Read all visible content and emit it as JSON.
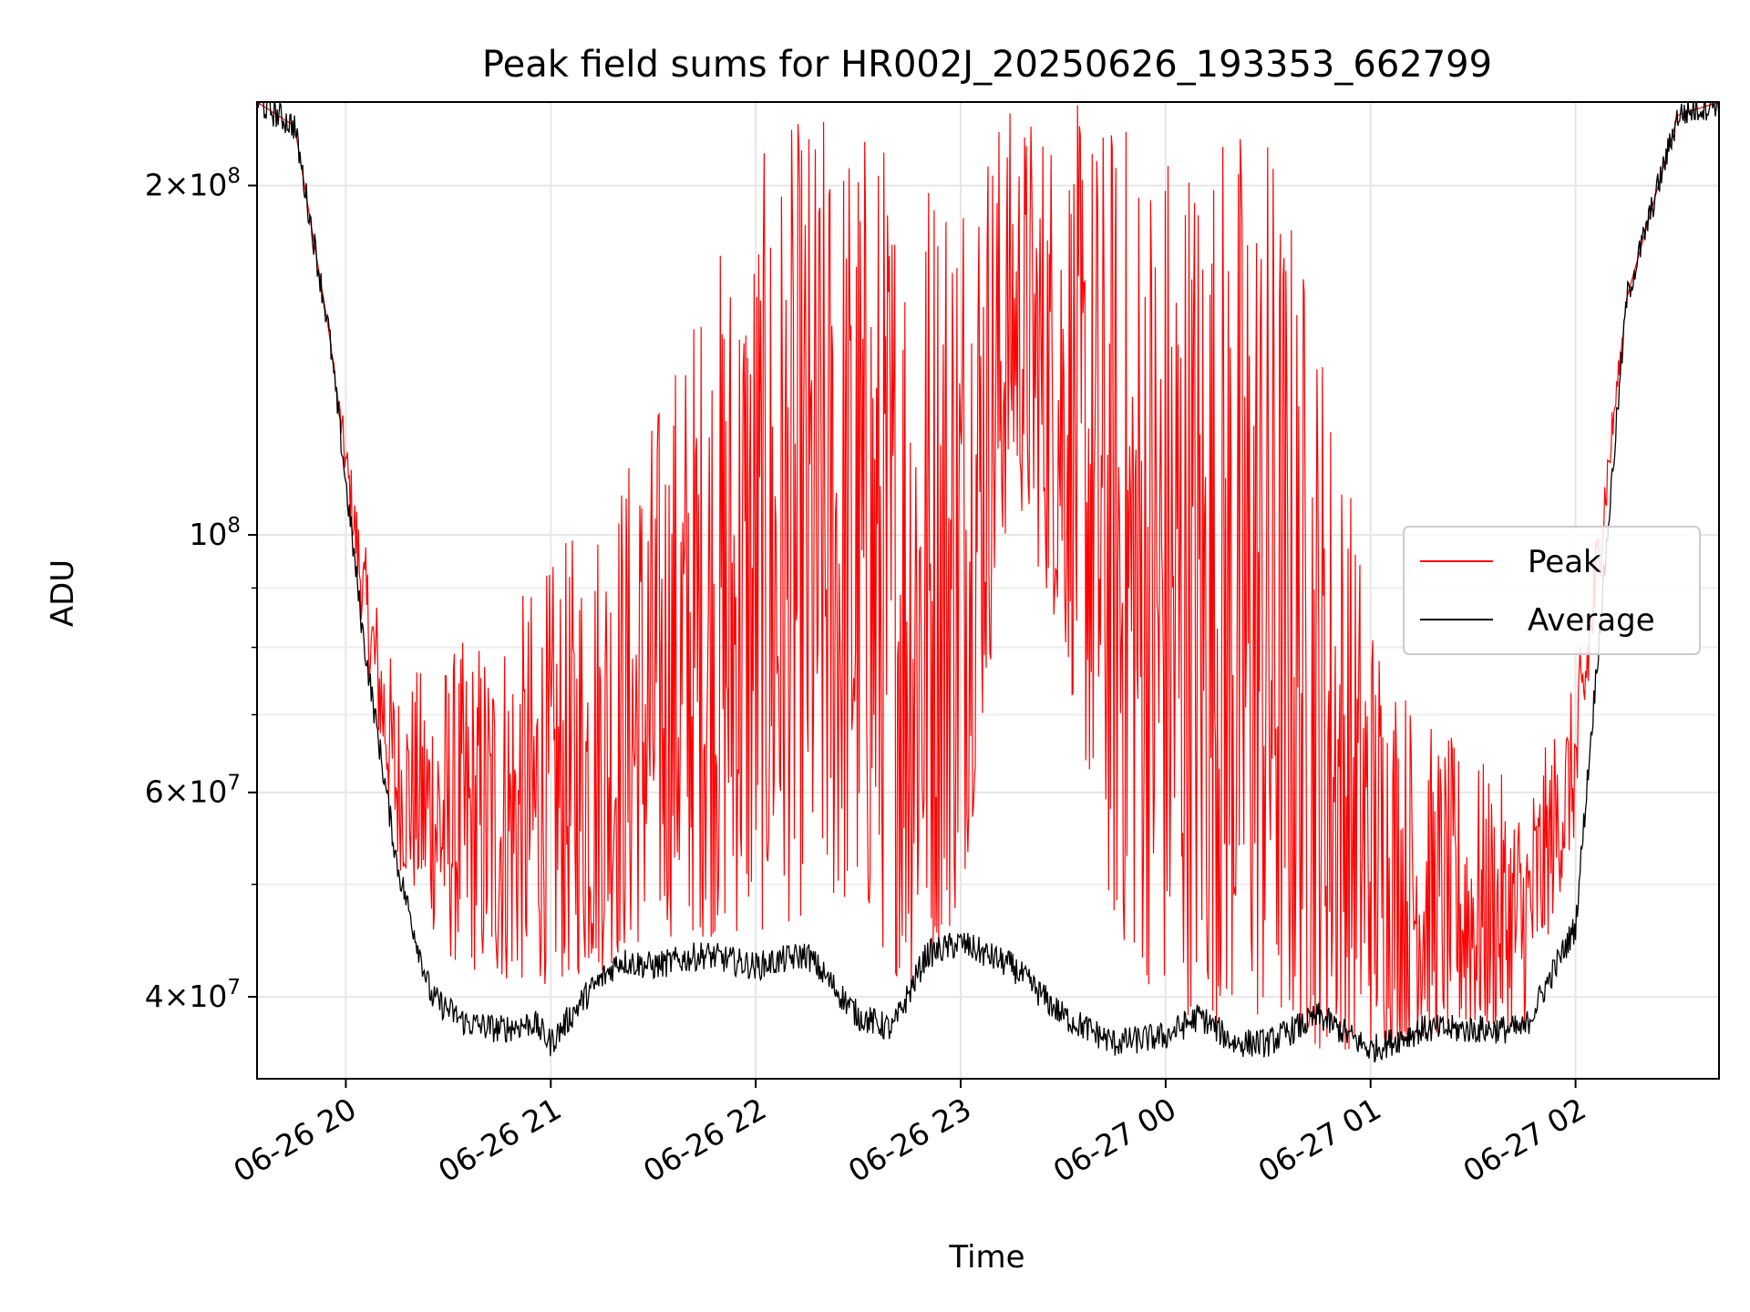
{
  "chart_data": {
    "type": "line",
    "title": "Peak field sums for HR002J_20250626_193353_662799",
    "xlabel": "Time",
    "ylabel": "ADU",
    "yscale": "log",
    "xlim": [
      "2025-06-26 19:34",
      "2025-06-27 02:42"
    ],
    "ylim": [
      34000000,
      236000000
    ],
    "grid": true,
    "legend": "center-right",
    "x_ticks": [
      "06-26 20",
      "06-26 21",
      "06-26 22",
      "06-26 23",
      "06-27 00",
      "06-27 01",
      "06-27 02"
    ],
    "x_tick_times": [
      "2025-06-26 20:00",
      "2025-06-26 21:00",
      "2025-06-26 22:00",
      "2025-06-26 23:00",
      "2025-06-27 00:00",
      "2025-06-27 01:00",
      "2025-06-27 02:00"
    ],
    "y_ticks": [
      {
        "value": 40000000,
        "mantissa": "4",
        "exp": "7"
      },
      {
        "value": 60000000,
        "mantissa": "6",
        "exp": "7"
      },
      {
        "value": 100000000,
        "mantissa": "",
        "exp": "8"
      },
      {
        "value": 200000000,
        "mantissa": "2",
        "exp": "8"
      }
    ],
    "y_minor_ticks": [
      50000000,
      70000000,
      80000000,
      90000000
    ],
    "series": [
      {
        "name": "Peak",
        "color": "#ff0000",
        "x": [
          "2025-06-26 19:34",
          "2025-06-26 19:45",
          "2025-06-26 19:55",
          "2025-06-26 20:05",
          "2025-06-26 20:15",
          "2025-06-26 20:30",
          "2025-06-26 20:45",
          "2025-06-26 21:00",
          "2025-06-26 21:15",
          "2025-06-26 21:30",
          "2025-06-26 21:45",
          "2025-06-26 22:00",
          "2025-06-26 22:15",
          "2025-06-26 22:30",
          "2025-06-26 22:45",
          "2025-06-26 23:00",
          "2025-06-26 23:15",
          "2025-06-26 23:30",
          "2025-06-26 23:45",
          "2025-06-27 00:00",
          "2025-06-27 00:15",
          "2025-06-27 00:30",
          "2025-06-27 00:45",
          "2025-06-27 01:00",
          "2025-06-27 01:15",
          "2025-06-27 01:30",
          "2025-06-27 01:45",
          "2025-06-27 02:00",
          "2025-06-27 02:15",
          "2025-06-27 02:30",
          "2025-06-27 02:42"
        ],
        "low": [
          236000000,
          225000000,
          150000000,
          82000000,
          52000000,
          43000000,
          41000000,
          41000000,
          42000000,
          45000000,
          45000000,
          45000000,
          47000000,
          47000000,
          40000000,
          47000000,
          110000000,
          80000000,
          45000000,
          39000000,
          38000000,
          37000000,
          36000000,
          36000000,
          37000000,
          37000000,
          38000000,
          55000000,
          160000000,
          230000000,
          236000000
        ],
        "high": [
          236000000,
          225000000,
          150000000,
          100000000,
          75000000,
          80000000,
          85000000,
          95000000,
          110000000,
          130000000,
          170000000,
          210000000,
          236000000,
          236000000,
          220000000,
          236000000,
          236000000,
          236000000,
          236000000,
          236000000,
          236000000,
          236000000,
          160000000,
          90000000,
          70000000,
          65000000,
          60000000,
          75000000,
          160000000,
          230000000,
          236000000
        ]
      },
      {
        "name": "Average",
        "color": "#000000",
        "x": [
          "2025-06-26 19:34",
          "2025-06-26 19:45",
          "2025-06-26 19:55",
          "2025-06-26 20:05",
          "2025-06-26 20:15",
          "2025-06-26 20:25",
          "2025-06-26 20:35",
          "2025-06-26 20:45",
          "2025-06-26 20:55",
          "2025-06-26 21:00",
          "2025-06-26 21:10",
          "2025-06-26 21:20",
          "2025-06-26 21:30",
          "2025-06-26 21:45",
          "2025-06-26 22:00",
          "2025-06-26 22:15",
          "2025-06-26 22:30",
          "2025-06-26 22:40",
          "2025-06-26 22:50",
          "2025-06-26 23:00",
          "2025-06-26 23:15",
          "2025-06-26 23:30",
          "2025-06-26 23:45",
          "2025-06-27 00:00",
          "2025-06-27 00:10",
          "2025-06-27 00:20",
          "2025-06-27 00:30",
          "2025-06-27 00:45",
          "2025-06-27 01:00",
          "2025-06-27 01:15",
          "2025-06-27 01:30",
          "2025-06-27 01:45",
          "2025-06-27 02:00",
          "2025-06-27 02:15",
          "2025-06-27 02:30",
          "2025-06-27 02:42"
        ],
        "y": [
          236000000,
          225000000,
          150000000,
          82000000,
          52000000,
          40000000,
          38000000,
          37500000,
          38000000,
          36500000,
          40000000,
          43000000,
          42500000,
          43500000,
          42500000,
          43500000,
          38500000,
          37500000,
          43500000,
          44500000,
          42500000,
          38500000,
          36500000,
          37000000,
          38500000,
          36500000,
          36500000,
          38500000,
          36000000,
          37500000,
          37500000,
          37500000,
          46000000,
          160000000,
          230000000,
          236000000
        ]
      }
    ]
  }
}
